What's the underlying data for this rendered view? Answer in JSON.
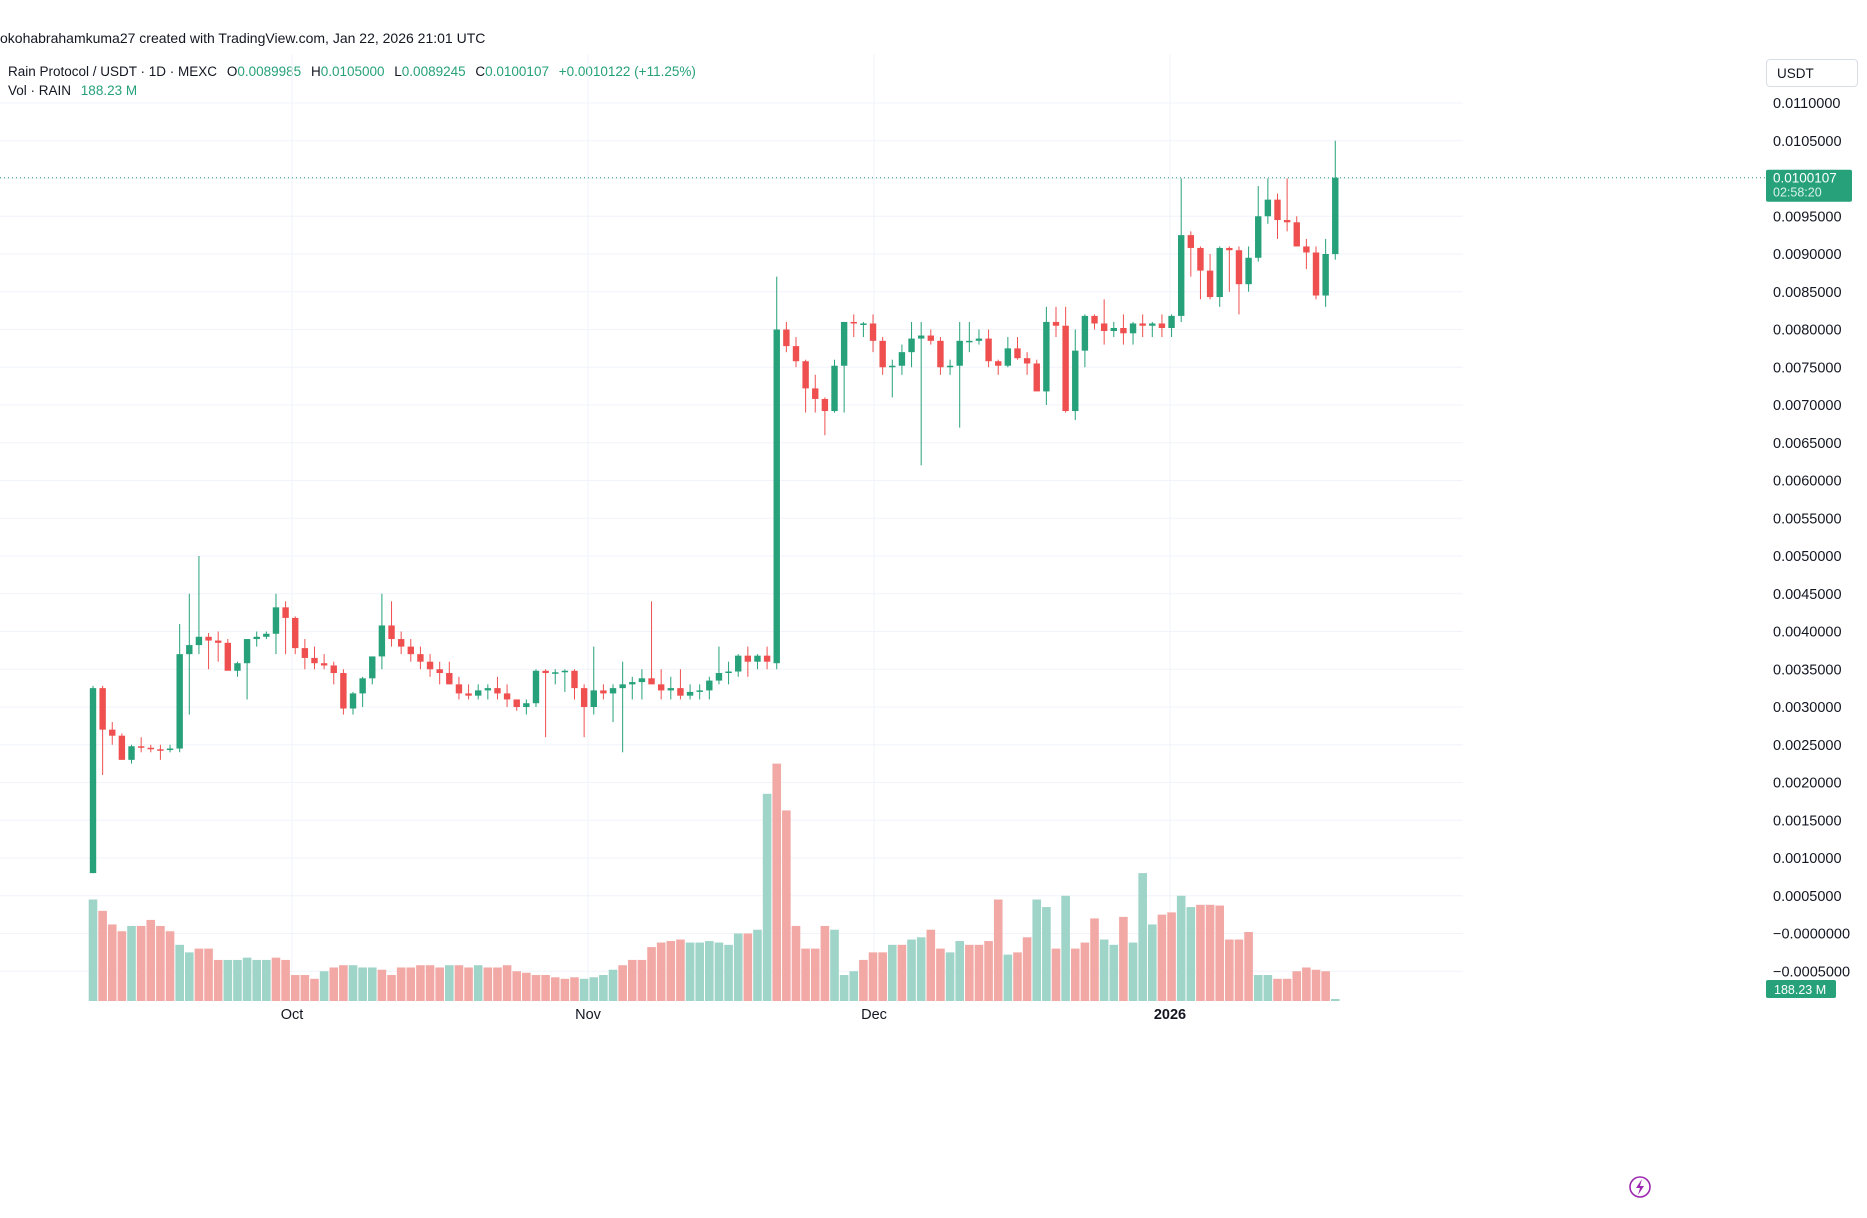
{
  "attribution": "okohabrahamkuma27 created with TradingView.com, Jan 22, 2026 21:01 UTC",
  "legend": {
    "symbol": "Rain Protocol / USDT · 1D · MEXC",
    "o_key": "O",
    "o_val": "0.0089985",
    "h_key": "H",
    "h_val": "0.0105000",
    "l_key": "L",
    "l_val": "0.0089245",
    "c_key": "C",
    "c_val": "0.0100107",
    "change": "+0.0010122 (+11.25%)",
    "vol_label": "Vol · RAIN",
    "vol_value": "188.23 M"
  },
  "currency": "USDT",
  "price_tag": {
    "price": "0.0100107",
    "countdown": "02:58:20"
  },
  "volume_tag": "188.23 M",
  "colors": {
    "up": "#26a17a",
    "down": "#ef4f4f",
    "vol_up": "#9fd4c8",
    "vol_down": "#f2a9a5",
    "grid": "#f0f3fa"
  },
  "chart_data": {
    "type": "candlestick",
    "series_name": "Rain Protocol / USDT",
    "x_tick_labels": [
      "Oct",
      "Nov",
      "Dec",
      "2026"
    ],
    "y_tick_labels": [
      "0.0110000",
      "0.0105000",
      "0.0100000",
      "0.0095000",
      "0.0090000",
      "0.0085000",
      "0.0080000",
      "0.0075000",
      "0.0070000",
      "0.0065000",
      "0.0060000",
      "0.0055000",
      "0.0050000",
      "0.0045000",
      "0.0040000",
      "0.0035000",
      "0.0030000",
      "0.0025000",
      "0.0020000",
      "0.0015000",
      "0.0010000",
      "0.0005000",
      "−0.0000000",
      "−0.0005000"
    ],
    "ylim": [
      -0.0009,
      0.0113
    ],
    "last_price": 0.0100107,
    "start_date": "2025-09-08",
    "candles": [
      [
        0.0008,
        0.00328,
        0.0008,
        0.00325
      ],
      [
        0.00325,
        0.00328,
        0.0021,
        0.0027
      ],
      [
        0.0027,
        0.0028,
        0.0025,
        0.00262
      ],
      [
        0.00262,
        0.00265,
        0.0023,
        0.0023
      ],
      [
        0.0023,
        0.0025,
        0.00225,
        0.00248
      ],
      [
        0.00248,
        0.0026,
        0.0024,
        0.00246
      ],
      [
        0.00246,
        0.0025,
        0.0024,
        0.00244
      ],
      [
        0.00244,
        0.0025,
        0.0023,
        0.00243
      ],
      [
        0.00243,
        0.0025,
        0.0024,
        0.00245
      ],
      [
        0.00245,
        0.0041,
        0.0024,
        0.0037
      ],
      [
        0.0037,
        0.0045,
        0.0029,
        0.00382
      ],
      [
        0.00382,
        0.005,
        0.0037,
        0.00393
      ],
      [
        0.00393,
        0.00398,
        0.0035,
        0.00388
      ],
      [
        0.00388,
        0.004,
        0.0036,
        0.00385
      ],
      [
        0.00385,
        0.0039,
        0.0035,
        0.00348
      ],
      [
        0.00348,
        0.0036,
        0.0034,
        0.00358
      ],
      [
        0.00358,
        0.0039,
        0.0031,
        0.0039
      ],
      [
        0.0039,
        0.004,
        0.0038,
        0.00393
      ],
      [
        0.00393,
        0.004,
        0.0039,
        0.00397
      ],
      [
        0.00397,
        0.0045,
        0.0037,
        0.00432
      ],
      [
        0.00432,
        0.0044,
        0.0037,
        0.00418
      ],
      [
        0.00418,
        0.0042,
        0.0037,
        0.00378
      ],
      [
        0.00378,
        0.0039,
        0.0035,
        0.00365
      ],
      [
        0.00365,
        0.0038,
        0.0035,
        0.00358
      ],
      [
        0.00358,
        0.0037,
        0.0035,
        0.00355
      ],
      [
        0.00355,
        0.0036,
        0.0033,
        0.00345
      ],
      [
        0.00345,
        0.0035,
        0.0029,
        0.00298
      ],
      [
        0.00298,
        0.0032,
        0.0029,
        0.00318
      ],
      [
        0.00318,
        0.0034,
        0.003,
        0.00338
      ],
      [
        0.00338,
        0.0036,
        0.0033,
        0.00367
      ],
      [
        0.00367,
        0.0045,
        0.0035,
        0.00408
      ],
      [
        0.00408,
        0.0044,
        0.0038,
        0.0039
      ],
      [
        0.0039,
        0.004,
        0.0037,
        0.0038
      ],
      [
        0.0038,
        0.0039,
        0.0036,
        0.0037
      ],
      [
        0.0037,
        0.0038,
        0.0035,
        0.0036
      ],
      [
        0.0036,
        0.0037,
        0.0034,
        0.0035
      ],
      [
        0.0035,
        0.0036,
        0.0033,
        0.00345
      ],
      [
        0.00345,
        0.0036,
        0.0033,
        0.0033
      ],
      [
        0.0033,
        0.0034,
        0.0031,
        0.00318
      ],
      [
        0.00318,
        0.0033,
        0.0031,
        0.00315
      ],
      [
        0.00315,
        0.0033,
        0.0031,
        0.00322
      ],
      [
        0.00322,
        0.0033,
        0.0031,
        0.00325
      ],
      [
        0.00325,
        0.0034,
        0.0031,
        0.00318
      ],
      [
        0.00318,
        0.0033,
        0.003,
        0.0031
      ],
      [
        0.0031,
        0.0031,
        0.00295,
        0.003
      ],
      [
        0.003,
        0.0031,
        0.0029,
        0.00305
      ],
      [
        0.00305,
        0.0035,
        0.003,
        0.00348
      ],
      [
        0.00348,
        0.0035,
        0.0026,
        0.00345
      ],
      [
        0.00345,
        0.0035,
        0.0033,
        0.00346
      ],
      [
        0.00346,
        0.0035,
        0.0032,
        0.00348
      ],
      [
        0.00348,
        0.0035,
        0.0031,
        0.00325
      ],
      [
        0.00325,
        0.0033,
        0.0026,
        0.003
      ],
      [
        0.003,
        0.0038,
        0.0029,
        0.00322
      ],
      [
        0.00322,
        0.0033,
        0.0031,
        0.00318
      ],
      [
        0.00318,
        0.0033,
        0.0028,
        0.00325
      ],
      [
        0.00325,
        0.0036,
        0.0024,
        0.0033
      ],
      [
        0.0033,
        0.0034,
        0.0031,
        0.00333
      ],
      [
        0.00333,
        0.0035,
        0.0031,
        0.00338
      ],
      [
        0.00338,
        0.0044,
        0.0033,
        0.0033
      ],
      [
        0.0033,
        0.0035,
        0.0031,
        0.00322
      ],
      [
        0.00322,
        0.0034,
        0.0031,
        0.00325
      ],
      [
        0.00325,
        0.0035,
        0.0031,
        0.00315
      ],
      [
        0.00315,
        0.0033,
        0.0031,
        0.0032
      ],
      [
        0.0032,
        0.0033,
        0.0031,
        0.00322
      ],
      [
        0.00322,
        0.0034,
        0.0031,
        0.00335
      ],
      [
        0.00335,
        0.0038,
        0.0033,
        0.00345
      ],
      [
        0.00345,
        0.0036,
        0.0033,
        0.00347
      ],
      [
        0.00347,
        0.0037,
        0.0034,
        0.00368
      ],
      [
        0.00368,
        0.0038,
        0.0034,
        0.0036
      ],
      [
        0.0036,
        0.0037,
        0.0035,
        0.00368
      ],
      [
        0.00368,
        0.0038,
        0.0035,
        0.0036
      ],
      [
        0.00358,
        0.0087,
        0.0035,
        0.008
      ],
      [
        0.008,
        0.0081,
        0.0077,
        0.00778
      ],
      [
        0.00778,
        0.0079,
        0.0075,
        0.00758
      ],
      [
        0.00758,
        0.0076,
        0.0069,
        0.00722
      ],
      [
        0.00722,
        0.0074,
        0.0069,
        0.00708
      ],
      [
        0.00708,
        0.0071,
        0.0066,
        0.00692
      ],
      [
        0.00692,
        0.0076,
        0.0069,
        0.00752
      ],
      [
        0.00752,
        0.0081,
        0.0069,
        0.0081
      ],
      [
        0.0081,
        0.0082,
        0.0079,
        0.00808
      ],
      [
        0.00808,
        0.0081,
        0.0079,
        0.00808
      ],
      [
        0.00808,
        0.0082,
        0.0077,
        0.00785
      ],
      [
        0.00785,
        0.0079,
        0.0074,
        0.0075
      ],
      [
        0.0075,
        0.0076,
        0.0071,
        0.00752
      ],
      [
        0.00752,
        0.0078,
        0.0074,
        0.0077
      ],
      [
        0.0077,
        0.0081,
        0.0075,
        0.00788
      ],
      [
        0.00788,
        0.0081,
        0.0062,
        0.00792
      ],
      [
        0.00792,
        0.008,
        0.0078,
        0.00785
      ],
      [
        0.00785,
        0.0079,
        0.0074,
        0.0075
      ],
      [
        0.0075,
        0.0076,
        0.0074,
        0.00752
      ],
      [
        0.00752,
        0.0081,
        0.0067,
        0.00785
      ],
      [
        0.00785,
        0.0081,
        0.0077,
        0.00785
      ],
      [
        0.00785,
        0.008,
        0.0078,
        0.00788
      ],
      [
        0.00788,
        0.008,
        0.0075,
        0.00758
      ],
      [
        0.00758,
        0.0076,
        0.0074,
        0.00752
      ],
      [
        0.00752,
        0.0079,
        0.0075,
        0.00775
      ],
      [
        0.00775,
        0.0079,
        0.0076,
        0.00762
      ],
      [
        0.00762,
        0.0077,
        0.0074,
        0.00755
      ],
      [
        0.00755,
        0.0076,
        0.0073,
        0.00718
      ],
      [
        0.00718,
        0.0083,
        0.007,
        0.0081
      ],
      [
        0.0081,
        0.0083,
        0.0079,
        0.00805
      ],
      [
        0.00805,
        0.0083,
        0.0069,
        0.00692
      ],
      [
        0.00692,
        0.008,
        0.0068,
        0.00772
      ],
      [
        0.00772,
        0.0082,
        0.0075,
        0.00818
      ],
      [
        0.00818,
        0.0082,
        0.008,
        0.00808
      ],
      [
        0.00808,
        0.0084,
        0.0078,
        0.00798
      ],
      [
        0.00798,
        0.0081,
        0.0079,
        0.00802
      ],
      [
        0.00802,
        0.0082,
        0.0078,
        0.00795
      ],
      [
        0.00795,
        0.0081,
        0.0078,
        0.00808
      ],
      [
        0.00808,
        0.0082,
        0.0079,
        0.00805
      ],
      [
        0.00805,
        0.0081,
        0.0079,
        0.00808
      ],
      [
        0.00808,
        0.0082,
        0.0079,
        0.00802
      ],
      [
        0.00802,
        0.0082,
        0.0079,
        0.00818
      ],
      [
        0.00818,
        0.01,
        0.0081,
        0.00925
      ],
      [
        0.00925,
        0.0093,
        0.0087,
        0.00908
      ],
      [
        0.00908,
        0.0091,
        0.0084,
        0.00878
      ],
      [
        0.00878,
        0.009,
        0.0084,
        0.00843
      ],
      [
        0.00843,
        0.0091,
        0.0083,
        0.00908
      ],
      [
        0.00908,
        0.0091,
        0.0085,
        0.00905
      ],
      [
        0.00905,
        0.0091,
        0.0082,
        0.0086
      ],
      [
        0.0086,
        0.0091,
        0.0085,
        0.00895
      ],
      [
        0.00895,
        0.0099,
        0.0089,
        0.0095
      ],
      [
        0.0095,
        0.01,
        0.0094,
        0.00972
      ],
      [
        0.00972,
        0.0098,
        0.0092,
        0.00945
      ],
      [
        0.00945,
        0.01,
        0.0093,
        0.00942
      ],
      [
        0.00942,
        0.0095,
        0.0091,
        0.0091
      ],
      [
        0.0091,
        0.0092,
        0.0088,
        0.00902
      ],
      [
        0.00902,
        0.0091,
        0.0084,
        0.00845
      ],
      [
        0.00845,
        0.0092,
        0.0083,
        0.009
      ],
      [
        0.0089985,
        0.0105,
        0.0089245,
        0.0100107
      ]
    ],
    "volumes": [
      [
        0.00045,
        true
      ],
      [
        0.0003,
        false
      ],
      [
        0.00012,
        false
      ],
      [
        3e-05,
        false
      ],
      [
        0.0001,
        true
      ],
      [
        0.0001,
        false
      ],
      [
        0.00018,
        false
      ],
      [
        0.0001,
        false
      ],
      [
        3e-05,
        false
      ],
      [
        -0.00015,
        true
      ],
      [
        -0.00025,
        true
      ],
      [
        -0.0002,
        false
      ],
      [
        -0.0002,
        false
      ],
      [
        -0.00035,
        false
      ],
      [
        -0.00035,
        true
      ],
      [
        -0.00035,
        true
      ],
      [
        -0.00032,
        true
      ],
      [
        -0.00035,
        true
      ],
      [
        -0.00035,
        true
      ],
      [
        -0.00032,
        false
      ],
      [
        -0.00035,
        false
      ],
      [
        -0.00055,
        false
      ],
      [
        -0.00055,
        false
      ],
      [
        -0.0006,
        false
      ],
      [
        -0.0005,
        true
      ],
      [
        -0.00045,
        false
      ],
      [
        -0.00042,
        false
      ],
      [
        -0.00042,
        true
      ],
      [
        -0.00045,
        true
      ],
      [
        -0.00045,
        true
      ],
      [
        -0.00048,
        false
      ],
      [
        -0.00055,
        false
      ],
      [
        -0.00045,
        false
      ],
      [
        -0.00045,
        false
      ],
      [
        -0.00042,
        false
      ],
      [
        -0.00042,
        false
      ],
      [
        -0.00045,
        false
      ],
      [
        -0.00042,
        true
      ],
      [
        -0.00042,
        false
      ],
      [
        -0.00045,
        false
      ],
      [
        -0.00042,
        true
      ],
      [
        -0.00045,
        false
      ],
      [
        -0.00045,
        false
      ],
      [
        -0.00042,
        false
      ],
      [
        -0.0005,
        false
      ],
      [
        -0.00052,
        false
      ],
      [
        -0.00055,
        false
      ],
      [
        -0.00055,
        false
      ],
      [
        -0.00058,
        false
      ],
      [
        -0.0006,
        false
      ],
      [
        -0.00058,
        false
      ],
      [
        -0.0006,
        true
      ],
      [
        -0.00058,
        true
      ],
      [
        -0.00055,
        true
      ],
      [
        -0.00048,
        true
      ],
      [
        -0.00042,
        false
      ],
      [
        -0.00035,
        false
      ],
      [
        -0.00035,
        false
      ],
      [
        -0.00018,
        false
      ],
      [
        -0.00012,
        false
      ],
      [
        -0.0001,
        false
      ],
      [
        -8e-05,
        false
      ],
      [
        -0.00012,
        true
      ],
      [
        -0.00012,
        true
      ],
      [
        -0.0001,
        true
      ],
      [
        -0.00012,
        true
      ],
      [
        -0.00015,
        true
      ],
      [
        0.0,
        true
      ],
      [
        0.0,
        false
      ],
      [
        5e-05,
        true
      ],
      [
        0.00185,
        true
      ],
      [
        0.00225,
        false
      ],
      [
        0.00163,
        false
      ],
      [
        0.0001,
        false
      ],
      [
        -0.0002,
        false
      ],
      [
        -0.0002,
        false
      ],
      [
        0.0001,
        false
      ],
      [
        5e-05,
        true
      ],
      [
        -0.00055,
        true
      ],
      [
        -0.0005,
        true
      ],
      [
        -0.00035,
        false
      ],
      [
        -0.00025,
        false
      ],
      [
        -0.00025,
        false
      ],
      [
        -0.00015,
        true
      ],
      [
        -0.00015,
        false
      ],
      [
        -8e-05,
        true
      ],
      [
        -5e-05,
        true
      ],
      [
        5e-05,
        false
      ],
      [
        -0.0002,
        false
      ],
      [
        -0.00025,
        true
      ],
      [
        -0.0001,
        true
      ],
      [
        -0.00015,
        false
      ],
      [
        -0.00015,
        false
      ],
      [
        -0.0001,
        false
      ],
      [
        0.00045,
        false
      ],
      [
        -0.00028,
        true
      ],
      [
        -0.00025,
        false
      ],
      [
        -5e-05,
        false
      ],
      [
        0.00045,
        true
      ],
      [
        0.00035,
        true
      ],
      [
        -0.0002,
        false
      ],
      [
        0.0005,
        true
      ],
      [
        -0.0002,
        false
      ],
      [
        -0.00012,
        false
      ],
      [
        0.0002,
        false
      ],
      [
        -8e-05,
        true
      ],
      [
        -0.00015,
        true
      ],
      [
        0.00022,
        false
      ],
      [
        -0.00012,
        true
      ],
      [
        0.0008,
        true
      ],
      [
        0.00012,
        true
      ],
      [
        0.00025,
        false
      ],
      [
        0.00028,
        false
      ],
      [
        0.0005,
        true
      ],
      [
        0.00035,
        true
      ],
      [
        0.00038,
        false
      ],
      [
        0.00038,
        false
      ],
      [
        0.00037,
        false
      ],
      [
        -8e-05,
        false
      ],
      [
        -8e-05,
        false
      ],
      [
        2e-05,
        false
      ],
      [
        -0.00055,
        true
      ],
      [
        -0.00055,
        true
      ],
      [
        -0.0006,
        false
      ],
      [
        -0.0006,
        false
      ],
      [
        -0.0005,
        false
      ],
      [
        -0.00045,
        false
      ],
      [
        -0.00048,
        false
      ],
      [
        -0.0005,
        false
      ],
      [
        -0.0009,
        true
      ]
    ]
  }
}
